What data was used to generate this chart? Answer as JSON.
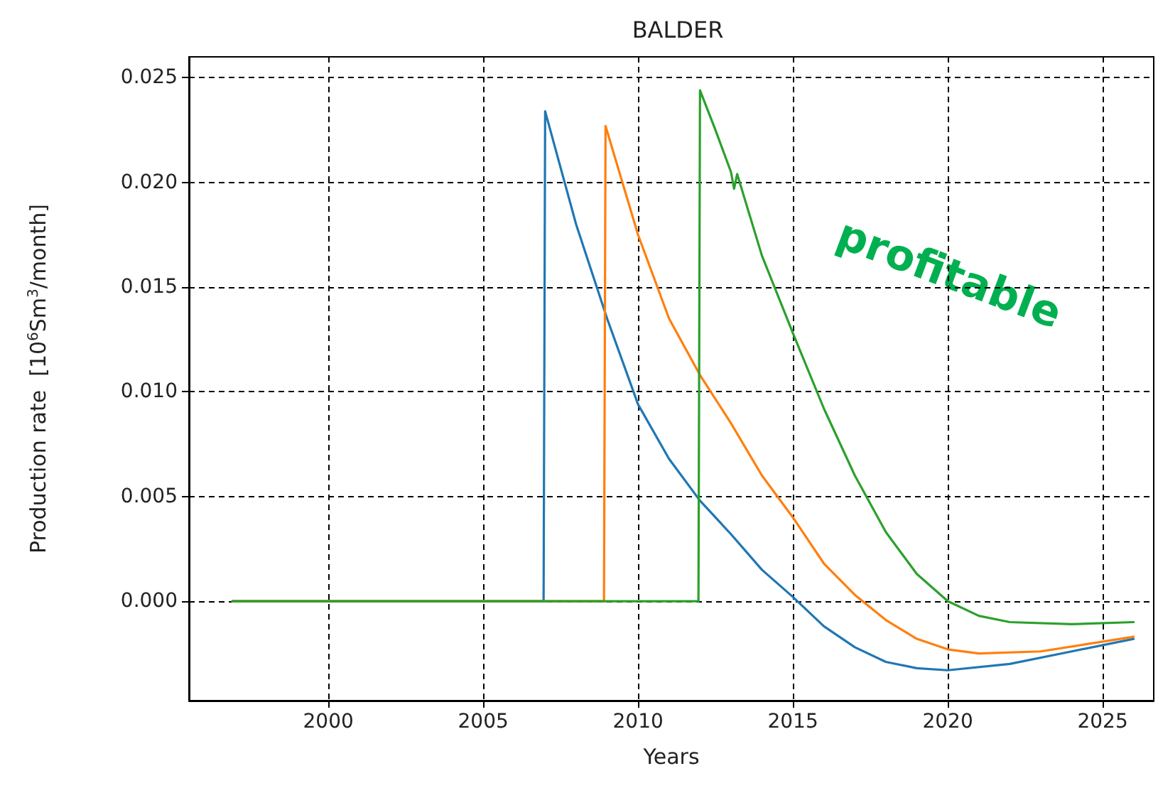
{
  "chart_data": {
    "type": "line",
    "title": "BALDER",
    "xlabel": "Years",
    "ylabel": "Production rate  [10$^{6}$Sm$^{3}$/month]",
    "xlim": [
      1995.5,
      2026.65
    ],
    "xticks": [
      2000,
      2005,
      2010,
      2015,
      2020,
      2025
    ],
    "ylim": [
      -0.00475,
      0.026
    ],
    "yticks": [
      {
        "value": 0,
        "label": "0.000"
      },
      {
        "value": 0.005,
        "label": "0.005"
      },
      {
        "value": 0.01,
        "label": "0.010"
      },
      {
        "value": 0.015,
        "label": "0.015"
      },
      {
        "value": 0.02,
        "label": "0.020"
      },
      {
        "value": 0.025,
        "label": "0.025"
      }
    ],
    "grid": true,
    "marker": "none",
    "line_style": "solid",
    "annotations": [
      "profitable"
    ],
    "series": [
      {
        "color": "#1f77b4",
        "x": [
          1996.9,
          2006.95,
          2007,
          2008,
          2009,
          2010,
          2011,
          2012,
          2013,
          2014,
          2015,
          2016,
          2017,
          2018,
          2019,
          2020,
          2022,
          2024,
          2026
        ],
        "values": [
          0,
          0,
          0.0234,
          0.018,
          0.0135,
          0.0094,
          0.0068,
          0.0048,
          0.0032,
          0.0015,
          0.0002,
          -0.0012,
          -0.0022,
          -0.0029,
          -0.0032,
          -0.0033,
          -0.003,
          -0.0024,
          -0.0018
        ]
      },
      {
        "color": "#ff7f0e",
        "x": [
          1996.9,
          2008.9,
          2008.95,
          2010,
          2011,
          2012,
          2013,
          2014,
          2015,
          2016,
          2017,
          2018,
          2019,
          2020,
          2021,
          2023,
          2026
        ],
        "values": [
          0,
          0,
          0.0227,
          0.0175,
          0.0135,
          0.0108,
          0.0085,
          0.006,
          0.004,
          0.0018,
          0.0003,
          -0.0009,
          -0.0018,
          -0.0023,
          -0.0025,
          -0.0024,
          -0.0017
        ]
      },
      {
        "color": "#2ca02c",
        "x": [
          1996.9,
          2011.95,
          2012,
          2012.5,
          2013,
          2013.1,
          2013.2,
          2014,
          2015,
          2016,
          2017,
          2018,
          2019,
          2020,
          2021,
          2022,
          2024,
          2026
        ],
        "values": [
          0,
          0,
          0.0244,
          0.0225,
          0.0205,
          0.0197,
          0.0204,
          0.0165,
          0.0128,
          0.0092,
          0.006,
          0.0033,
          0.0013,
          0,
          -0.0007,
          -0.001,
          -0.0011,
          -0.001
        ]
      }
    ]
  }
}
